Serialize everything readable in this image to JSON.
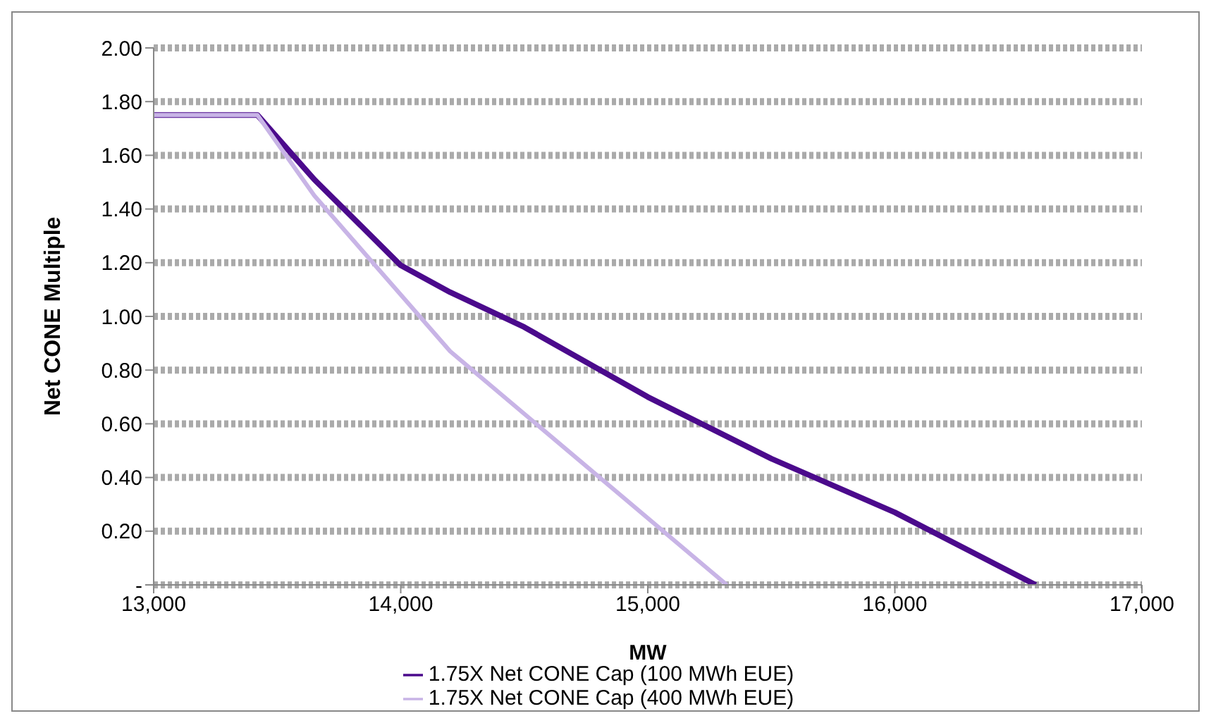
{
  "chart_data": {
    "type": "line",
    "xlabel": "MW",
    "ylabel": "Net CONE Multiple",
    "xlim": [
      13000,
      17000
    ],
    "xticks": [
      {
        "value": 13000,
        "label": "13,000"
      },
      {
        "value": 14000,
        "label": "14,000"
      },
      {
        "value": 15000,
        "label": "15,000"
      },
      {
        "value": 16000,
        "label": "16,000"
      },
      {
        "value": 17000,
        "label": "17,000"
      }
    ],
    "ylim": [
      0,
      2
    ],
    "yticks": [
      {
        "value": 0,
        "label": "-"
      },
      {
        "value": 0.2,
        "label": "0.20"
      },
      {
        "value": 0.4,
        "label": "0.40"
      },
      {
        "value": 0.6,
        "label": "0.60"
      },
      {
        "value": 0.8,
        "label": "0.80"
      },
      {
        "value": 1,
        "label": "1.00"
      },
      {
        "value": 1.2,
        "label": "1.20"
      },
      {
        "value": 1.4,
        "label": "1.40"
      },
      {
        "value": 1.6,
        "label": "1.60"
      },
      {
        "value": 1.8,
        "label": "1.80"
      },
      {
        "value": 2,
        "label": "2.00"
      }
    ],
    "grid": "y",
    "legend": "bottom",
    "marker": "none",
    "line_style": "solid",
    "series": [
      {
        "name": "1.75X Net CONE Cap (100 MWh EUE)",
        "color": "#4b0a8c",
        "x": [
          13000,
          13420,
          13650,
          14000,
          14200,
          14500,
          15000,
          15500,
          16000,
          16570
        ],
        "values": [
          1.75,
          1.75,
          1.51,
          1.19,
          1.09,
          0.96,
          0.7,
          0.47,
          0.27,
          0
        ]
      },
      {
        "name": "1.75X Net CONE Cap (400 MWh EUE)",
        "color": "#c8b4e6",
        "x": [
          13000,
          13420,
          13650,
          14200,
          15320
        ],
        "values": [
          1.75,
          1.75,
          1.45,
          0.87,
          0
        ]
      }
    ]
  }
}
